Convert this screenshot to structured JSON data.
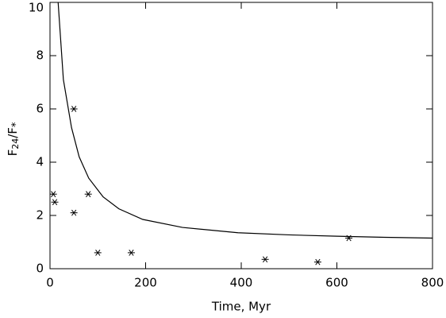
{
  "chart_data": {
    "type": "scatter",
    "x_label": "Time, Myr",
    "y_label_parts": [
      "F",
      "24",
      "/F",
      "*"
    ],
    "xlim": [
      0,
      800
    ],
    "xticks": [
      0,
      200,
      400,
      600,
      800
    ],
    "ylim": [
      0,
      10
    ],
    "yticks": [
      0,
      2,
      4,
      6,
      8,
      10
    ],
    "color": "#000000",
    "series": [
      {
        "type": "scatter",
        "x": [
          7,
          10,
          50,
          50,
          80,
          100,
          170,
          450,
          560,
          625
        ],
        "values": [
          2.8,
          2.5,
          6.0,
          2.1,
          2.8,
          0.6,
          0.6,
          0.35,
          0.25,
          1.15
        ]
      },
      {
        "type": "line",
        "x": [
          17,
          28,
          45,
          61,
          81,
          111,
          144,
          194,
          277,
          393,
          500,
          600,
          700,
          800
        ],
        "values": [
          10,
          7.1,
          5.3,
          4.2,
          3.4,
          2.7,
          2.25,
          1.85,
          1.55,
          1.35,
          1.27,
          1.22,
          1.18,
          1.15
        ]
      }
    ]
  }
}
